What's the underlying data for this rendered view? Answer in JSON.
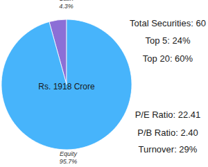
{
  "chart_data": {
    "type": "pie",
    "title": "Rs. 1918 Crore",
    "categories": [
      "Cash",
      "Equity"
    ],
    "values": [
      4.3,
      95.7
    ],
    "value_labels": [
      "4.3%",
      "95.7%"
    ],
    "colors": [
      "#8c6fd6",
      "#47b4fb"
    ],
    "data_labels": true,
    "annotations": [
      "Total Securities: 60",
      "Top 5: 24%",
      "Top 20: 60%",
      "P/E Ratio: 22.41",
      "P/B Ratio: 2.40",
      "Turnover: 29%"
    ]
  }
}
